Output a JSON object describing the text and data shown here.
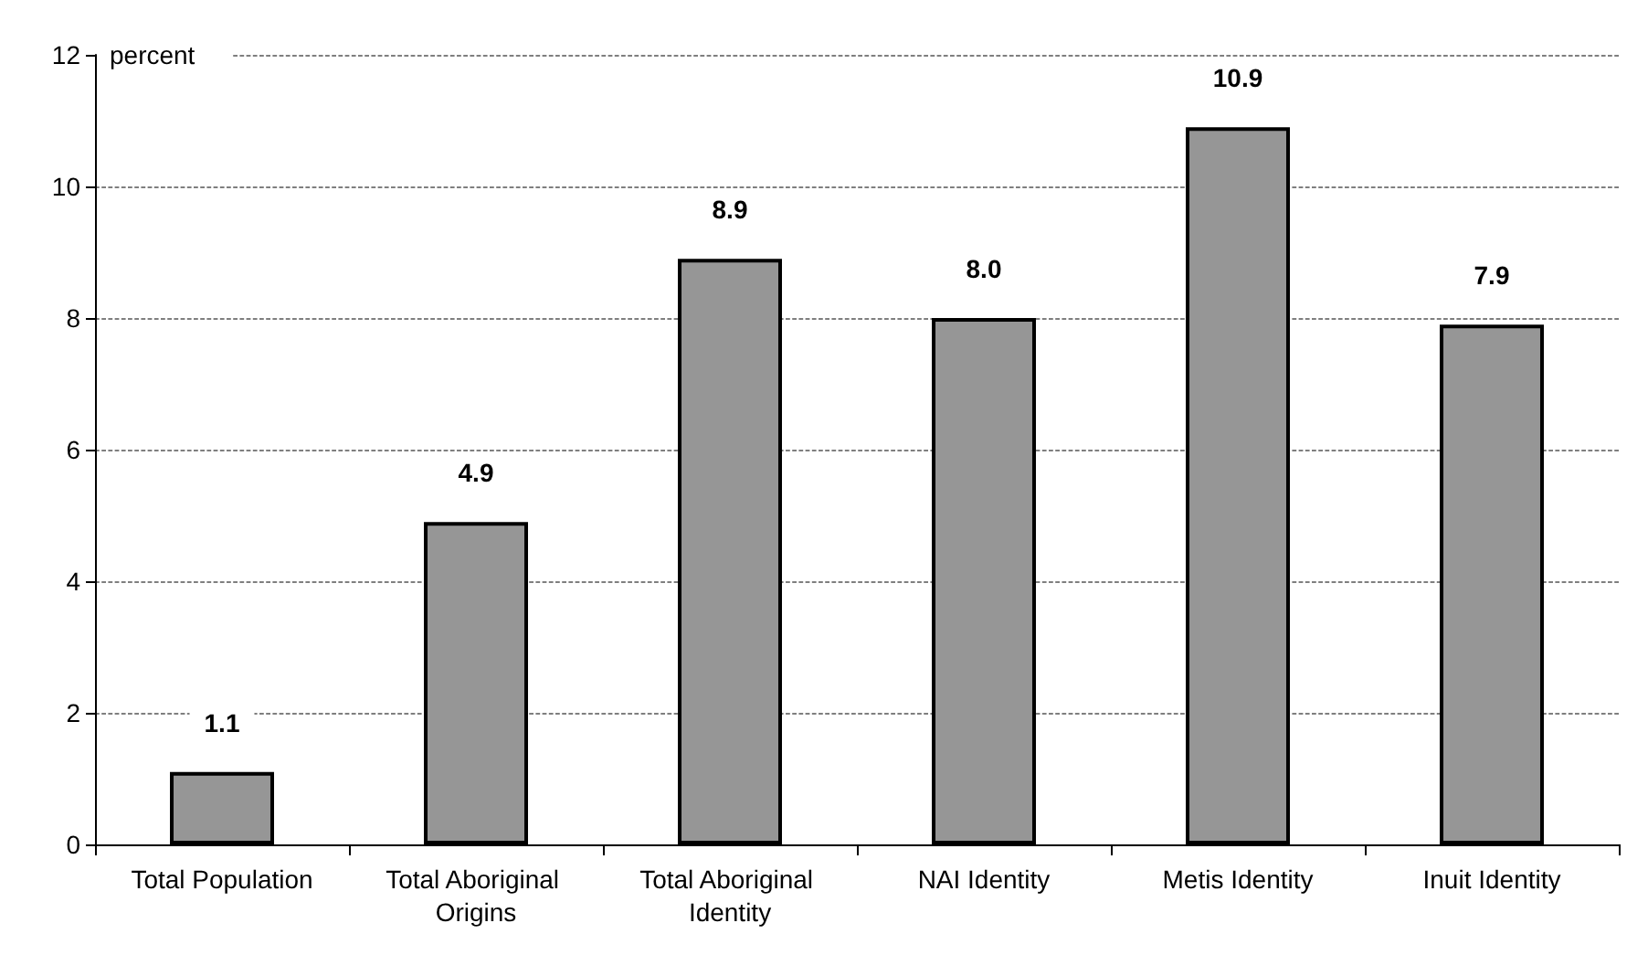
{
  "chart_data": {
    "type": "bar",
    "ylabel": "percent",
    "categories": [
      "Total Population",
      "Total Aboriginal Origins",
      "Total Aboriginal Identity",
      "NAI Identity",
      "Metis Identity",
      "Inuit Identity"
    ],
    "values": [
      1.1,
      4.9,
      8.9,
      8.0,
      10.9,
      7.9
    ],
    "value_labels": [
      "1.1",
      "4.9",
      "8.9",
      "8.0",
      "10.9",
      "7.9"
    ],
    "color": "#969696",
    "ylim": [
      0,
      12
    ],
    "yticks": [
      0,
      2,
      4,
      6,
      8,
      10,
      12
    ],
    "grid": "y"
  }
}
